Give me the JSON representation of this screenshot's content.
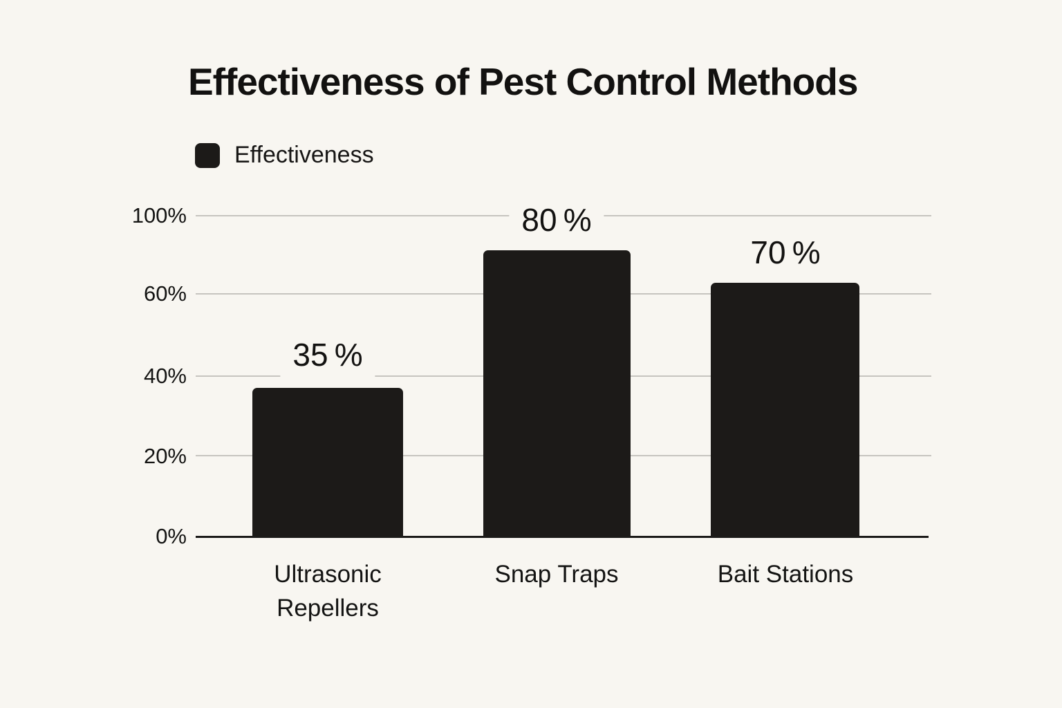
{
  "chart_data": {
    "type": "bar",
    "title": "Effectiveness of Pest Control Methods",
    "categories": [
      "Ultrasonic Repellers",
      "Snap Traps",
      "Bait Stations"
    ],
    "series": [
      {
        "name": "Effectiveness",
        "values": [
          35,
          80,
          70
        ]
      }
    ],
    "value_labels": [
      "35 %",
      "80 %",
      "70 %"
    ],
    "xlabel": "",
    "ylabel": "",
    "y_ticks": [
      "100%",
      "60%",
      "40%",
      "20%",
      "0%"
    ],
    "ylim": [
      0,
      100
    ],
    "grid": true,
    "legend_position": "top-left",
    "bar_color": "#1c1a18",
    "background_color": "#f8f6f1",
    "gridline_color": "#c6c4bf"
  },
  "title": "Effectiveness of Pest Control Methods",
  "legend": {
    "label": "Effectiveness"
  },
  "y_axis": {
    "tick_100": "100%",
    "tick_60": "60%",
    "tick_40": "40%",
    "tick_20": "20%",
    "tick_0": "0%"
  },
  "x_axis": {
    "cat1_line1": "Ultrasonic",
    "cat1_line2": "Repellers",
    "cat2": "Snap Traps",
    "cat3": "Bait Stations"
  },
  "values": {
    "bar1": "35 %",
    "bar2": "80 %",
    "bar3": "70 %"
  }
}
